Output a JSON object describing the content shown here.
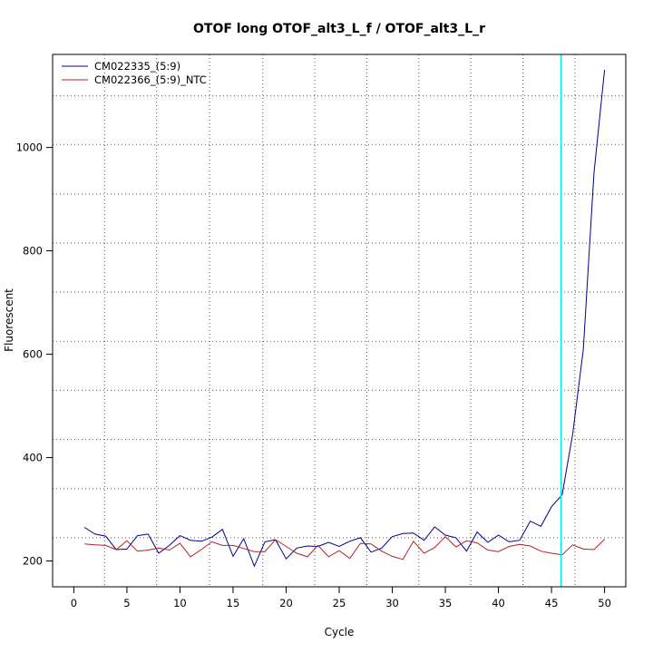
{
  "chart_data": {
    "type": "line",
    "title": "OTOF long OTOF_alt3_L_f / OTOF_alt3_L_r",
    "xlabel": "Cycle",
    "ylabel": "Fluorescent",
    "xlim": [
      -2,
      52
    ],
    "ylim": [
      150,
      1180
    ],
    "x_ticks": [
      0,
      5,
      10,
      15,
      20,
      25,
      30,
      35,
      40,
      45,
      50
    ],
    "y_ticks": [
      200,
      400,
      600,
      800,
      1000
    ],
    "v_grid": [
      2.9,
      7.8,
      12.8,
      17.8,
      22.7,
      27.6,
      32.5,
      37.4,
      42.3,
      47.2
    ],
    "h_grid": [
      245,
      340,
      435,
      530,
      625,
      720,
      815,
      910,
      1005,
      1100
    ],
    "threshold_x": 45.9,
    "threshold_color": "#00e5ee",
    "grid": true,
    "legend_position": "top-left",
    "series": [
      {
        "name": "CM022335_(5:9)",
        "color": "#00008b",
        "x": [
          1,
          2,
          3,
          4,
          5,
          6,
          7,
          8,
          9,
          10,
          11,
          12,
          13,
          14,
          15,
          16,
          17,
          18,
          19,
          20,
          21,
          22,
          23,
          24,
          25,
          26,
          27,
          28,
          29,
          30,
          31,
          32,
          33,
          34,
          35,
          36,
          37,
          38,
          39,
          40,
          41,
          42,
          43,
          44,
          45,
          46,
          47,
          48,
          49,
          50
        ],
        "values": [
          265,
          252,
          248,
          222,
          223,
          249,
          252,
          215,
          230,
          249,
          240,
          238,
          246,
          261,
          209,
          243,
          190,
          237,
          241,
          204,
          225,
          229,
          228,
          236,
          228,
          238,
          245,
          217,
          225,
          247,
          253,
          254,
          240,
          266,
          250,
          245,
          219,
          256,
          236,
          250,
          237,
          240,
          277,
          267,
          305,
          328,
          446,
          610,
          950,
          1150
        ]
      },
      {
        "name": "CM022366_(5:9)_NTC",
        "color": "#b22222",
        "x": [
          1,
          2,
          3,
          4,
          5,
          6,
          7,
          8,
          9,
          10,
          11,
          12,
          13,
          14,
          15,
          16,
          17,
          18,
          19,
          20,
          21,
          22,
          23,
          24,
          25,
          26,
          27,
          28,
          29,
          30,
          31,
          32,
          33,
          34,
          35,
          36,
          37,
          38,
          39,
          40,
          41,
          42,
          43,
          44,
          45,
          46,
          47,
          48,
          49,
          50
        ],
        "values": [
          233,
          231,
          230,
          222,
          239,
          219,
          221,
          225,
          221,
          234,
          208,
          222,
          237,
          230,
          230,
          224,
          218,
          218,
          241,
          228,
          215,
          208,
          230,
          208,
          220,
          205,
          234,
          233,
          219,
          209,
          203,
          238,
          215,
          226,
          247,
          227,
          239,
          235,
          221,
          218,
          228,
          232,
          229,
          219,
          215,
          212,
          231,
          223,
          222,
          242
        ]
      }
    ]
  }
}
